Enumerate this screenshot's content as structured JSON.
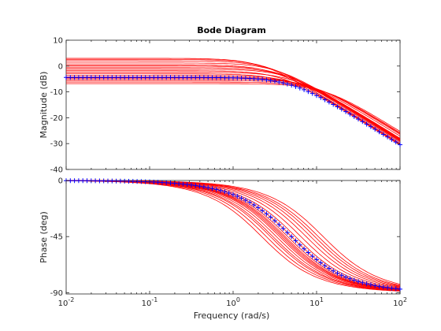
{
  "chart_data": {
    "type": "line",
    "title": "Bode Diagram",
    "xlabel": "Frequency  (rad/s)",
    "x_scale": "log",
    "xlim": [
      0.01,
      100
    ],
    "x_ticks": [
      0.01,
      0.1,
      1,
      10,
      100
    ],
    "x_tick_labels": [
      {
        "base": "10",
        "exp": "-2"
      },
      {
        "base": "10",
        "exp": "-1"
      },
      {
        "base": "10",
        "exp": "0"
      },
      {
        "base": "10",
        "exp": "1"
      },
      {
        "base": "10",
        "exp": "2"
      }
    ],
    "grid": false,
    "panels": [
      {
        "name": "magnitude",
        "ylabel": "Magnitude (dB)",
        "ylim": [
          -40,
          10
        ],
        "y_ticks": [
          -40,
          -30,
          -20,
          -10,
          0,
          10
        ],
        "y_tick_labels": [
          "-40",
          "-30",
          "-20",
          "-10",
          "0",
          "10"
        ]
      },
      {
        "name": "phase",
        "ylabel": "Phase (deg)",
        "ylim": [
          -91,
          0
        ],
        "y_ticks": [
          -90,
          -45,
          0
        ],
        "y_tick_labels": [
          "-90",
          "-45",
          "0"
        ]
      }
    ],
    "series_model": "first-order low-pass  G(s) = K / (s/wc + 1)",
    "nominal": {
      "color": "#0000ff",
      "marker": "+",
      "K_dB": -4.4,
      "wc": 5.0
    },
    "samples": {
      "color": "#ff0000",
      "params": [
        {
          "K_dB": 3.0,
          "wc": 2.2
        },
        {
          "K_dB": 2.6,
          "wc": 2.5
        },
        {
          "K_dB": 2.0,
          "wc": 2.8
        },
        {
          "K_dB": 1.2,
          "wc": 3.3
        },
        {
          "K_dB": 0.5,
          "wc": 3.0
        },
        {
          "K_dB": 0.0,
          "wc": 3.6
        },
        {
          "K_dB": -0.6,
          "wc": 4.0
        },
        {
          "K_dB": -1.2,
          "wc": 4.5
        },
        {
          "K_dB": -1.8,
          "wc": 3.8
        },
        {
          "K_dB": -2.4,
          "wc": 5.0
        },
        {
          "K_dB": -3.0,
          "wc": 4.2
        },
        {
          "K_dB": -3.6,
          "wc": 5.6
        },
        {
          "K_dB": -4.2,
          "wc": 6.5
        },
        {
          "K_dB": -4.6,
          "wc": 7.5
        },
        {
          "K_dB": -5.0,
          "wc": 8.5
        },
        {
          "K_dB": -5.6,
          "wc": 9.5
        },
        {
          "K_dB": -6.2,
          "wc": 10.5
        },
        {
          "K_dB": -6.8,
          "wc": 12.0
        }
      ]
    }
  }
}
